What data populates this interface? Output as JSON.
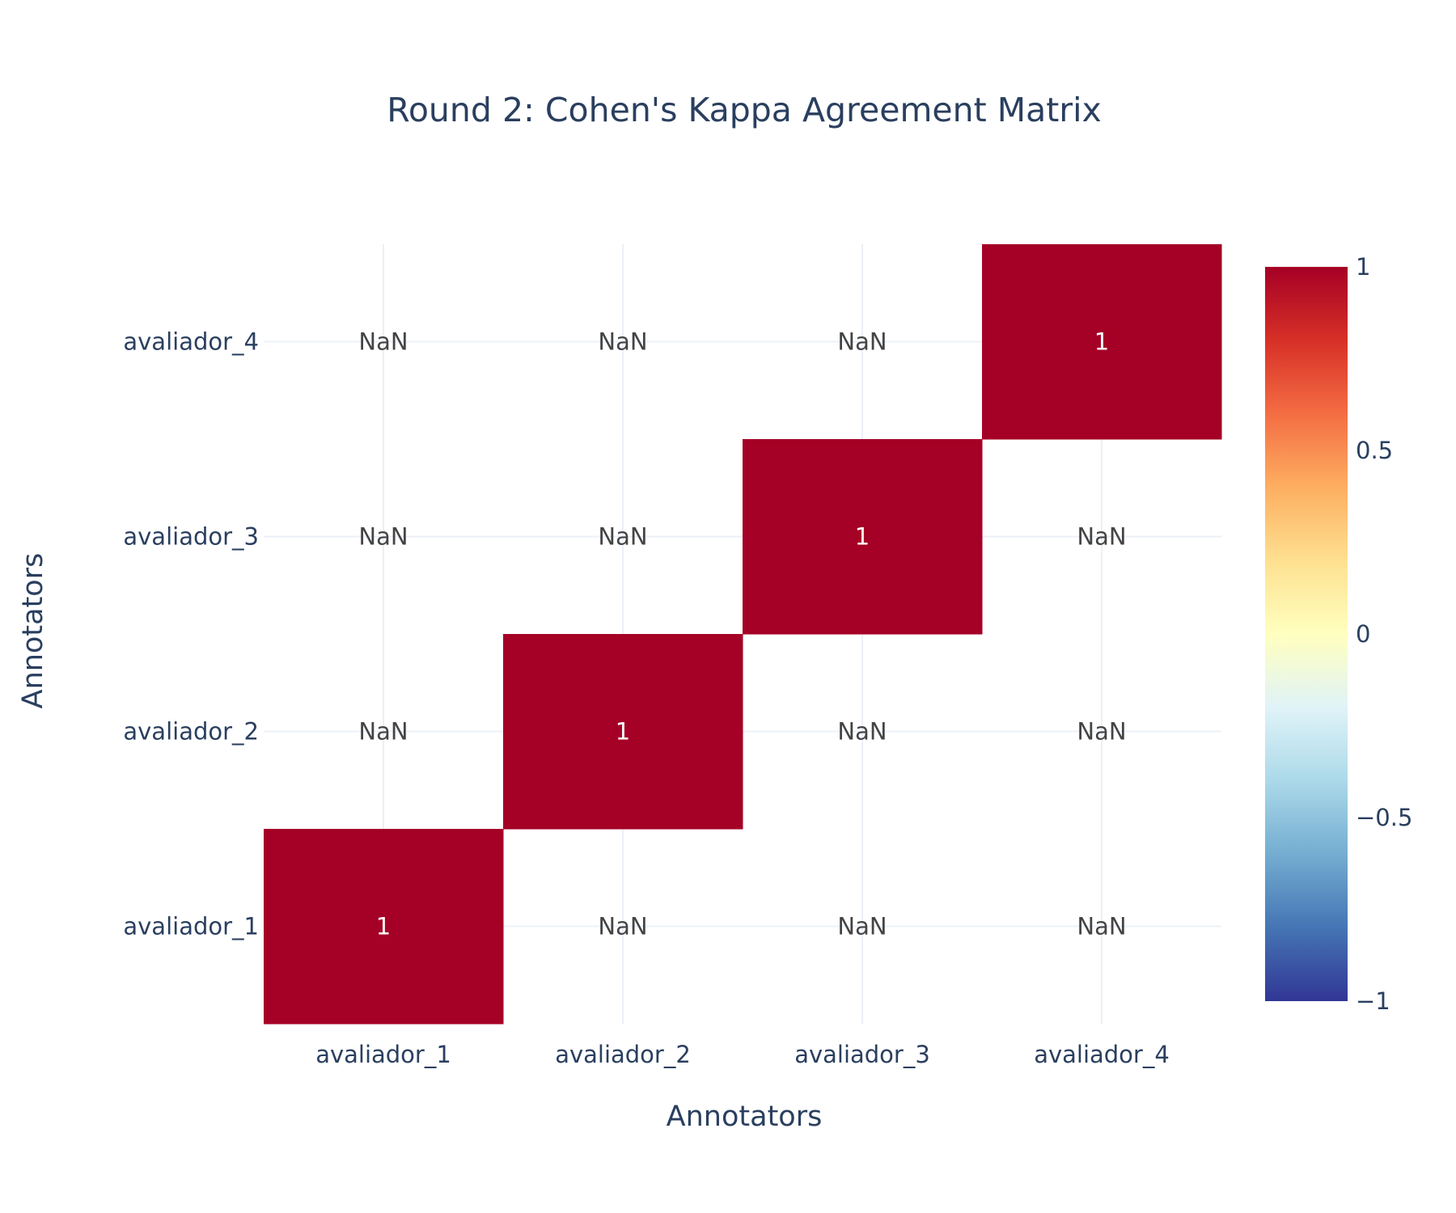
{
  "chart_data": {
    "type": "heatmap",
    "title": "Round 2: Cohen's Kappa Agreement Matrix",
    "xlabel": "Annotators",
    "ylabel": "Annotators",
    "x": [
      "avaliador_1",
      "avaliador_2",
      "avaliador_3",
      "avaliador_4"
    ],
    "y": [
      "avaliador_1",
      "avaliador_2",
      "avaliador_3",
      "avaliador_4"
    ],
    "z": [
      [
        1,
        null,
        null,
        null
      ],
      [
        null,
        1,
        null,
        null
      ],
      [
        null,
        null,
        1,
        null
      ],
      [
        null,
        null,
        null,
        1
      ]
    ],
    "cell_text": [
      [
        "1",
        "NaN",
        "NaN",
        "NaN"
      ],
      [
        "NaN",
        "1",
        "NaN",
        "NaN"
      ],
      [
        "NaN",
        "NaN",
        "1",
        "NaN"
      ],
      [
        "NaN",
        "NaN",
        "NaN",
        "1"
      ]
    ],
    "zmin": -1,
    "zmax": 1,
    "colorscale": "RdYlBu (reversed)",
    "colorbar_ticks": [
      1,
      0.5,
      0,
      -0.5,
      -1
    ],
    "colorbar_tick_labels": [
      "1",
      "0.5",
      "0",
      "−0.5",
      "−1"
    ],
    "grid": true,
    "colors": {
      "max": "#a50026",
      "min": "#313695",
      "mid": "#ffffbf",
      "text": "#2a3f5f",
      "grid": "#ebf0f8"
    }
  }
}
